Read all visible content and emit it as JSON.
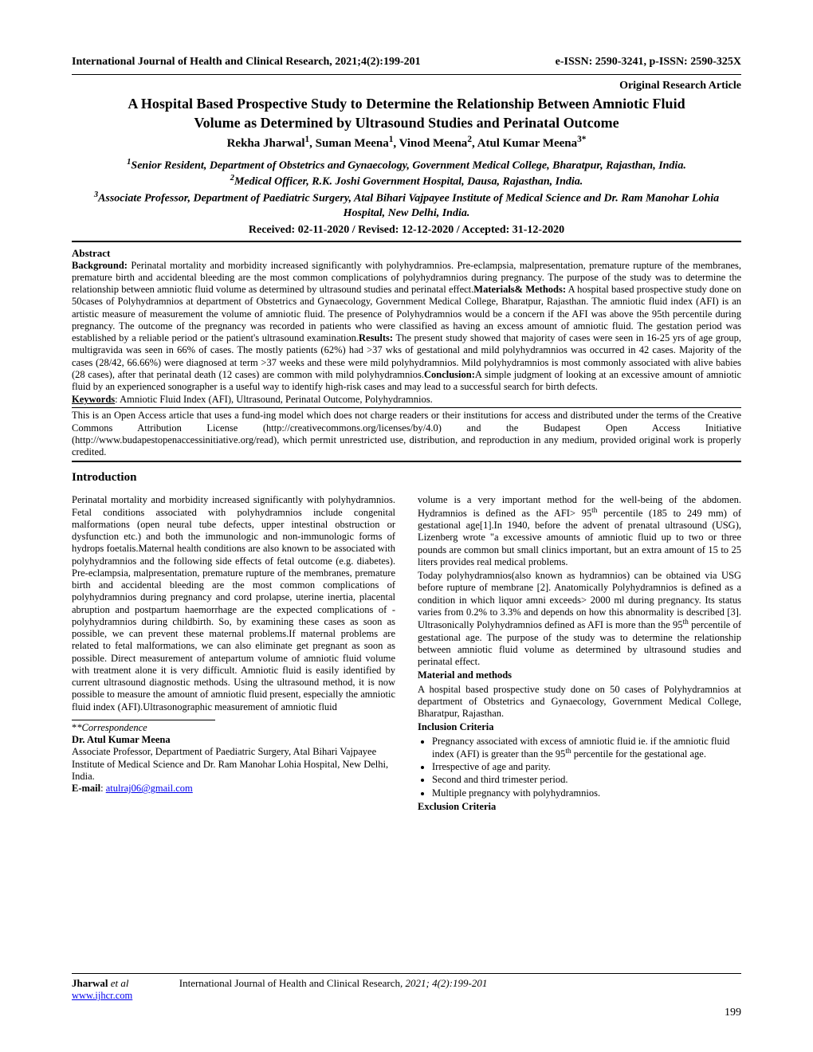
{
  "header": {
    "journal": "International Journal of Health and Clinical Research, 2021;4(2):199-201",
    "issn": "e-ISSN: 2590-3241, p-ISSN: 2590-325X"
  },
  "article_type": "Original Research Article",
  "title_line1": "A Hospital Based Prospective Study to Determine the Relationship Between Amniotic Fluid",
  "title_line2": "Volume as Determined by Ultrasound Studies and Perinatal Outcome",
  "authors_html": "Rekha Jharwal<sup>1</sup>, Suman Meena<sup>1</sup>, Vinod Meena<sup>2</sup>, Atul Kumar Meena<sup>3*</sup>",
  "affil1_html": "<sup>1</sup>Senior Resident, Department of Obstetrics and Gynaecology, Government Medical College, Bharatpur, Rajasthan, India.",
  "affil2_html": "<sup>2</sup>Medical Officer, R.K. Joshi Government Hospital, Dausa, Rajasthan, India.",
  "affil3_html": "<sup>3</sup>Associate Professor, Department of Paediatric Surgery, Atal Bihari Vajpayee Institute of Medical Science and Dr. Ram Manohar Lohia Hospital, New Delhi, India.",
  "dates": "Received: 02-11-2020 / Revised: 12-12-2020 / Accepted: 31-12-2020",
  "abstract_heading": "Abstract",
  "abstract_html": "<b>Background:</b> Perinatal mortality and morbidity increased significantly with polyhydramnios. Pre-eclampsia, malpresentation, premature rupture of the membranes, premature birth and accidental bleeding are the most common complications of polyhydramnios during pregnancy. The purpose of the study was to determine the relationship between amniotic fluid volume as determined by ultrasound studies and perinatal effect.<b>Materials&amp; Methods:</b> A hospital based prospective study done on 50cases of Polyhydramnios at department of Obstetrics and Gynaecology, Government Medical College, Bharatpur, Rajasthan. The amniotic fluid index (AFI) is an artistic measure of measurement the volume of amniotic fluid. The presence of Polyhydramnios would be a concern if the AFI was above the 95th percentile during pregnancy. The outcome of the pregnancy was recorded in patients who were classified as having an excess amount of amniotic fluid. The gestation period was established by a reliable period or the patient's ultrasound examination.<b>Results:</b> The present study showed that majority of cases were seen in 16-25 yrs of age group, multigravida was seen in 66% of cases. The mostly patients (62%) had &gt;37 wks of gestational and mild polyhydramnios was occurred in 42 cases. Majority of the cases (28/42, 66.66%) were diagnosed at term &gt;37 weeks and these were mild polyhydramnios. Mild polyhydramnios is most commonly associated with alive babies (28 cases), after that perinatal death (12 cases) are common with mild polyhydramnios.<b>Conclusion:</b>A simple judgment of looking at an excessive amount of amniotic fluid by an experienced sonographer is a useful way to identify high-risk cases and may lead to a successful search for birth defects.",
  "keywords_html": "<b><u>Keywords</u></b>: Amniotic Fluid Index (AFI), Ultrasound, Perinatal Outcome, Polyhydramnios.",
  "license": "This is an Open Access article that uses a fund-ing model which does not charge readers or their institutions for access and distributed under the terms of the Creative Commons Attribution License (http://creativecommons.org/licenses/by/4.0) and the Budapest Open Access Initiative (http://www.budapestopenaccessinitiative.org/read), which permit unrestricted use, distribution, and reproduction in any medium, provided original work is properly credited.",
  "intro_heading": "Introduction",
  "col1_p1": "Perinatal mortality and morbidity increased significantly with polyhydramnios. Fetal conditions associated with polyhydramnios include congenital malformations (open neural tube defects, upper intestinal obstruction or dysfunction etc.) and both the immunologic and non-immunologic forms of hydrops foetalis.Maternal health conditions are also known to be associated with polyhydramnios and the following side effects of fetal outcome (e.g. diabetes). Pre-eclampsia, malpresentation, premature rupture of the membranes, premature birth and accidental bleeding are the most common complications of polyhydramnios during pregnancy and cord prolapse, uterine inertia, placental abruption and postpartum haemorrhage are the expected complications of -polyhydramnios during childbirth. So, by examining these cases as soon as possible, we can prevent these maternal problems.If maternal problems are related to fetal malformations, we can also eliminate get pregnant as soon as possible. Direct measurement of antepartum volume of amniotic fluid volume with treatment alone it is very difficult. Amniotic fluid is easily identified by current ultrasound diagnostic methods. Using the ultrasound method, it is now possible to measure the amount of amniotic fluid present, especially the amniotic fluid index (AFI).Ultrasonographic measurement of amniotic fluid",
  "corr_label": "*Correspondence",
  "corr_name": "Dr.  Atul Kumar Meena",
  "corr_addr": "Associate Professor, Department of Paediatric Surgery, Atal Bihari Vajpayee Institute of Medical Science and Dr. Ram Manohar Lohia Hospital, New Delhi, India.",
  "corr_email_label": "E-mail",
  "corr_email": "atulraj06@gmail.com",
  "col2_p1_html": "volume is a very important method for the well-being of the abdomen. Hydramnios is defined as the AFI&gt; 95<sup>th</sup> percentile (185 to 249 mm) of gestational age[1].In 1940, before the advent of prenatal ultrasound (USG), Lizenberg wrote \"a excessive amounts of amniotic fluid up to two or three pounds are common but small clinics important, but an extra amount of 15 to 25 liters provides real medical problems.",
  "col2_p2_html": "Today polyhydramnios(also known as hydramnios) can be obtained via USG before rupture of membrane [2]. Anatomically Polyhydramnios is defined as a condition in which liquor amni exceeds&gt; 2000 ml during pregnancy. Its status varies from 0.2% to 3.3% and depends on how this abnormality is described [3]. Ultrasonically Polyhydramnios defined as AFI is more than the 95<sup>th</sup> percentile of gestational age. The purpose of the study was to determine the relationship between amniotic fluid volume as determined by ultrasound studies and perinatal effect.",
  "mm_heading": "Material and  methods",
  "mm_body": "A hospital based prospective study done on 50 cases of Polyhydramnios at department of Obstetrics and Gynaecology, Government Medical College, Bharatpur, Rajasthan.",
  "incl_heading": "Inclusion Criteria",
  "incl_items": [
    "Pregnancy associated with excess of amniotic fluid ie. if the amniotic fluid index (AFI) is greater than the 95<sup>th</sup> percentile for the gestational age.",
    "Irrespective of age and parity.",
    "Second and third trimester period.",
    "Multiple pregnancy with polyhydramnios."
  ],
  "excl_heading": "Exclusion Criteria",
  "footer": {
    "lead_author": "Jharwal",
    "etal": " et al",
    "journal": "International Journal of Health and Clinical Research",
    "issue": ", 2021; 4(2):199-201",
    "url": "www.ijhcr.com",
    "page": "199"
  },
  "colors": {
    "text": "#000000",
    "link": "#0000ee",
    "background": "#ffffff"
  },
  "typography": {
    "body_font": "Times New Roman",
    "body_size_pt": 10,
    "title_size_pt": 14,
    "header_size_pt": 11
  }
}
